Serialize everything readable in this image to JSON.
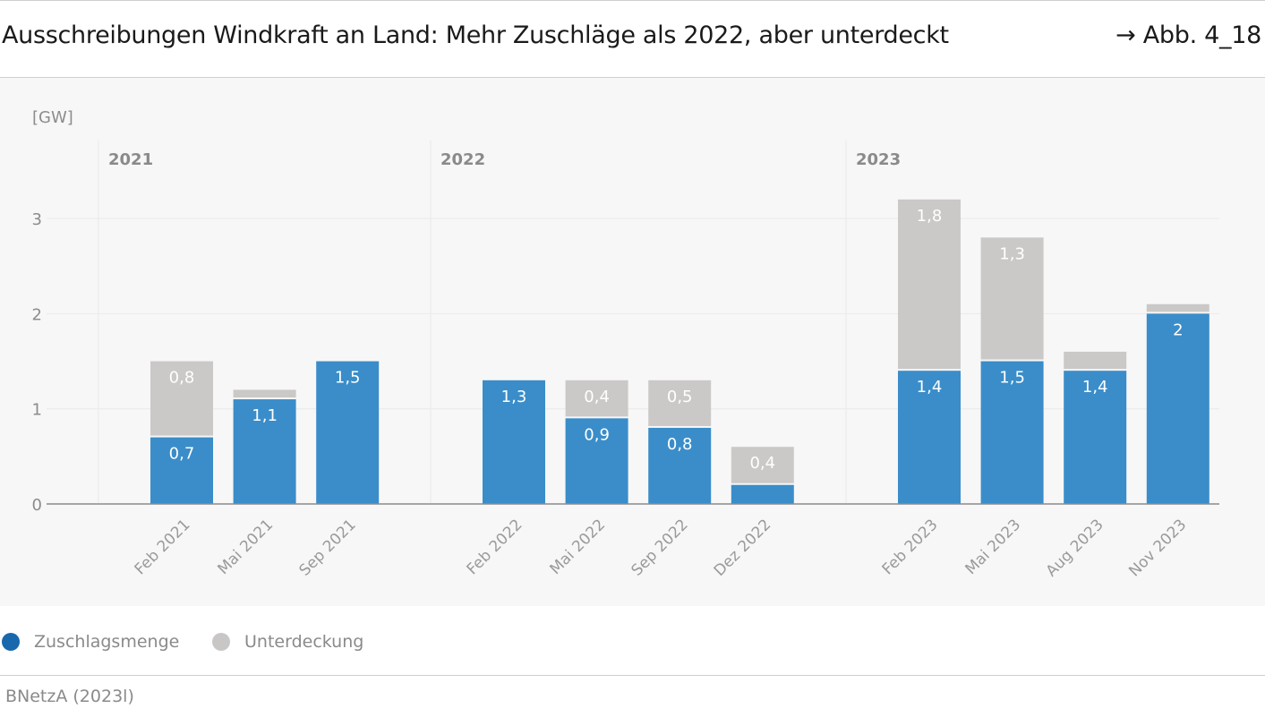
{
  "header": {
    "title": "Ausschreibungen Windkraft an Land: Mehr Zuschläge als 2022, aber unterdeckt",
    "figure_ref": "→ Abb. 4_18"
  },
  "colors": {
    "zuschlag": "#3a8dc9",
    "unterdeckung": "#cbc8c8",
    "legend_zuschlag_dot": "#1868ad",
    "legend_unterdeckung_dot": "#c9c6c6",
    "axis": "#8c8c8c",
    "grid": "#eaeaea"
  },
  "chart_data": {
    "type": "bar",
    "stacked": true,
    "ylabel": "[GW]",
    "ylim": [
      0,
      3.4
    ],
    "yticks": [
      0,
      1,
      2,
      3
    ],
    "grid": true,
    "groups": [
      {
        "label": "2021",
        "categories": [
          "Feb 2021",
          "Mai 2021",
          "Sep 2021"
        ]
      },
      {
        "label": "2022",
        "categories": [
          "Feb 2022",
          "Mai 2022",
          "Sep 2022",
          "Dez 2022"
        ]
      },
      {
        "label": "2023",
        "categories": [
          "Feb 2023",
          "Mai 2023",
          "Aug 2023",
          "Nov 2023"
        ]
      }
    ],
    "categories": [
      "Feb 2021",
      "Mai 2021",
      "Sep 2021",
      "Feb 2022",
      "Mai 2022",
      "Sep 2022",
      "Dez 2022",
      "Feb 2023",
      "Mai 2023",
      "Aug 2023",
      "Nov 2023"
    ],
    "series": [
      {
        "name": "Zuschlagsmenge",
        "values": [
          0.7,
          1.1,
          1.5,
          1.3,
          0.9,
          0.8,
          0.2,
          1.4,
          1.5,
          1.4,
          2.0
        ],
        "labels": [
          "0,7",
          "1,1",
          "1,5",
          "1,3",
          "0,9",
          "0,8",
          "",
          "1,4",
          "1,5",
          "1,4",
          "2"
        ]
      },
      {
        "name": "Unterdeckung",
        "values": [
          0.8,
          0.1,
          0,
          0,
          0.4,
          0.5,
          0.4,
          1.8,
          1.3,
          0.2,
          0.1
        ],
        "labels": [
          "0,8",
          "",
          "",
          "",
          "0,4",
          "0,5",
          "0,4",
          "1,8",
          "1,3",
          "",
          ""
        ]
      }
    ],
    "legend_position": "bottom-left"
  },
  "legend": {
    "items": [
      {
        "label": "Zuschlagsmenge"
      },
      {
        "label": "Unterdeckung"
      }
    ]
  },
  "source": "BNetzA (2023l)"
}
